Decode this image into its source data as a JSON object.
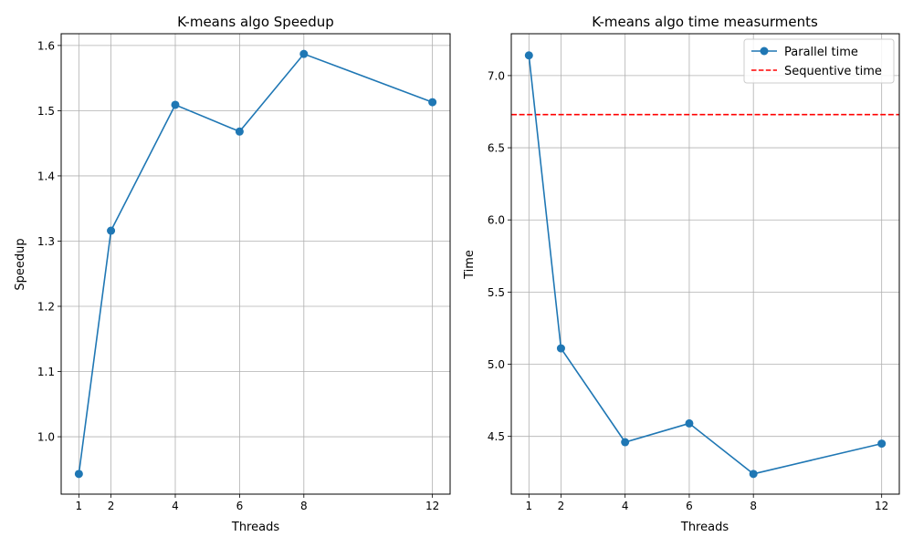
{
  "chart_data": [
    {
      "type": "line",
      "title": "K-means algo Speedup",
      "xlabel": "Threads",
      "ylabel": "Speedup",
      "x": [
        1,
        2,
        4,
        6,
        8,
        12
      ],
      "xticks": [
        "1",
        "2",
        "4",
        "6",
        "8",
        "12"
      ],
      "yticks": [
        "1.0",
        "1.1",
        "1.2",
        "1.3",
        "1.4",
        "1.5",
        "1.6"
      ],
      "xlim": [
        0.45,
        12.55
      ],
      "ylim": [
        0.912,
        1.618
      ],
      "grid": true,
      "series": [
        {
          "values": [
            0.943,
            1.316,
            1.509,
            1.468,
            1.587,
            1.513
          ],
          "color": "#1f77b4",
          "marker": "circle"
        }
      ]
    },
    {
      "type": "line",
      "title": "K-means algo time measurments",
      "xlabel": "Threads",
      "ylabel": "Time",
      "x": [
        1,
        2,
        4,
        6,
        8,
        12
      ],
      "xticks": [
        "1",
        "2",
        "4",
        "6",
        "8",
        "12"
      ],
      "yticks": [
        "4.5",
        "5.0",
        "5.5",
        "6.0",
        "6.5",
        "7.0"
      ],
      "xlim": [
        0.45,
        12.55
      ],
      "ylim": [
        4.1,
        7.29
      ],
      "grid": true,
      "legend": "top-right",
      "series": [
        {
          "name": "Parallel time",
          "values": [
            7.14,
            5.11,
            4.46,
            4.59,
            4.24,
            4.45
          ],
          "color": "#1f77b4",
          "marker": "circle"
        }
      ],
      "reference_lines": [
        {
          "name": "Sequentive time",
          "y": 6.73,
          "color": "#ff0000",
          "style": "dashed"
        }
      ]
    }
  ]
}
